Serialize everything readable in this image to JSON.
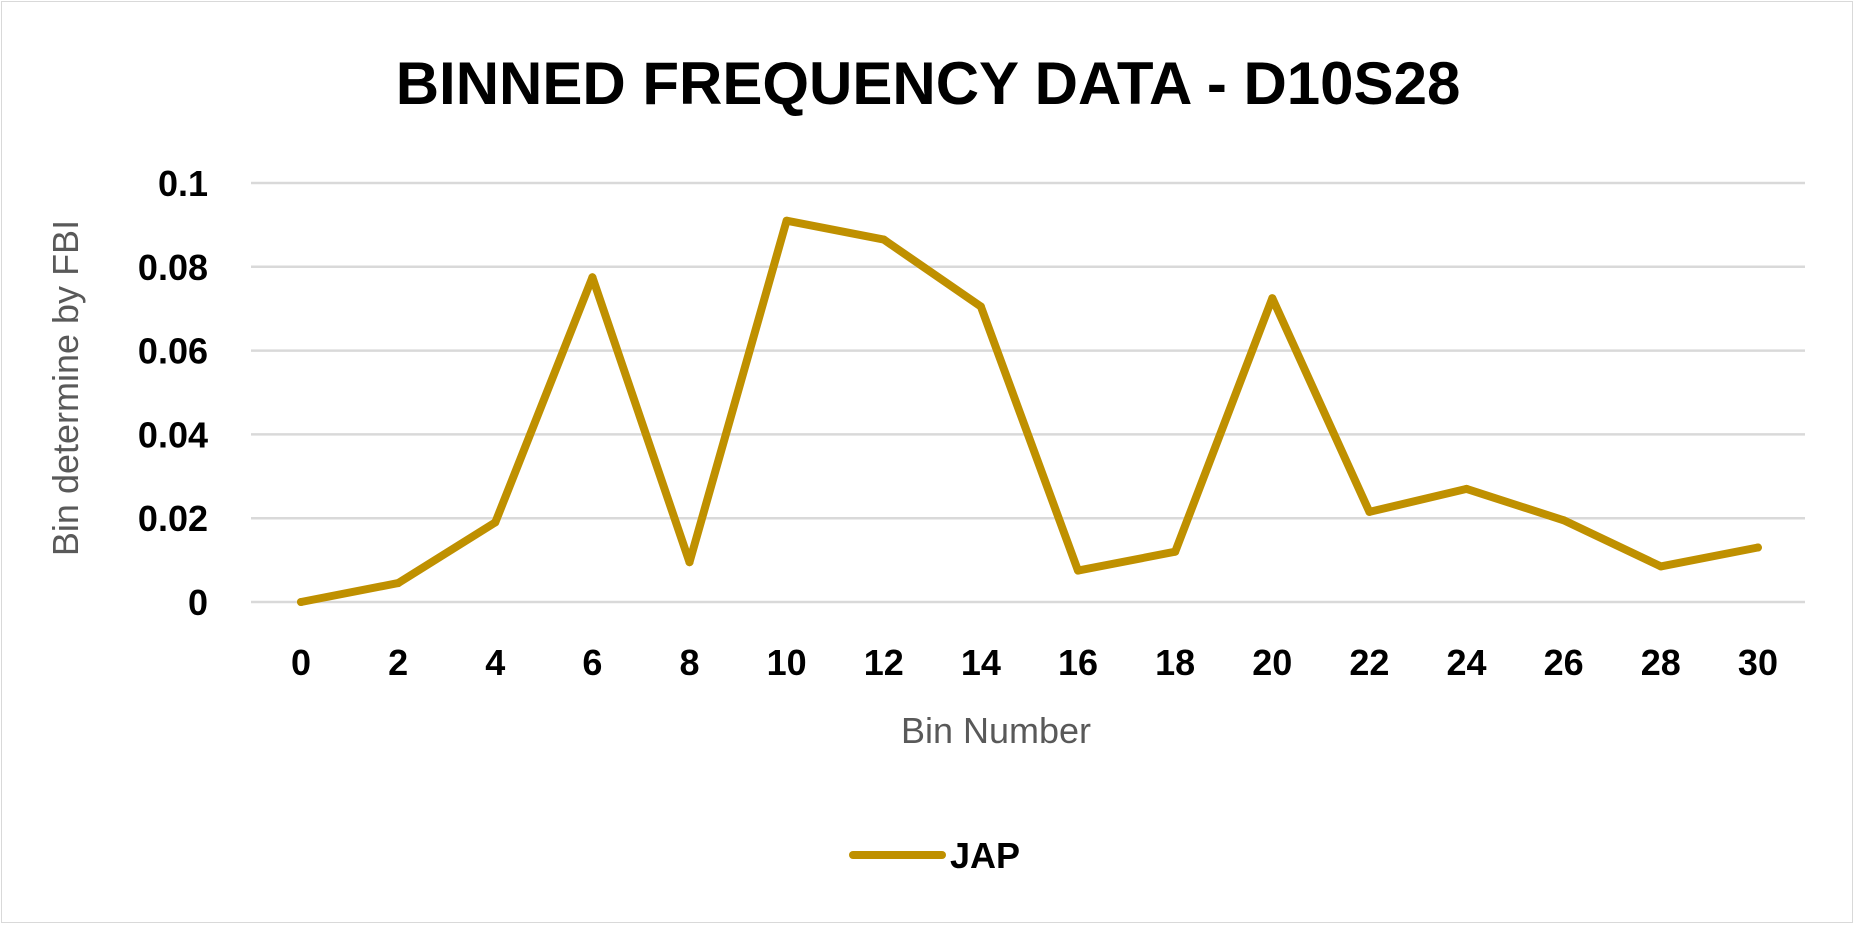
{
  "chart_data": {
    "type": "line",
    "title": "BINNED FREQUENCY DATA - D10S28",
    "xlabel": "Bin Number",
    "ylabel": "Bin determine by FBI",
    "x": [
      0,
      2,
      4,
      6,
      8,
      10,
      12,
      14,
      16,
      18,
      20,
      22,
      24,
      26,
      28,
      30
    ],
    "x_tick_labels": [
      "0",
      "2",
      "4",
      "6",
      "8",
      "10",
      "12",
      "14",
      "16",
      "18",
      "20",
      "22",
      "24",
      "26",
      "28",
      "30"
    ],
    "y_tick_labels": [
      "0",
      "0.02",
      "0.04",
      "0.06",
      "0.08",
      "0.1"
    ],
    "ylim": [
      0,
      0.1
    ],
    "grid": true,
    "legend_position": "bottom",
    "series": [
      {
        "name": "JAP",
        "color": "#bf9000",
        "values": [
          0.0,
          0.0045,
          0.019,
          0.0775,
          0.0095,
          0.091,
          0.0865,
          0.0705,
          0.0075,
          0.012,
          0.0725,
          0.0215,
          0.027,
          0.0195,
          0.0085,
          0.013
        ]
      }
    ]
  }
}
